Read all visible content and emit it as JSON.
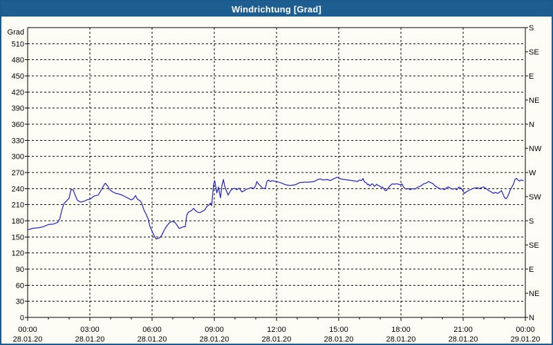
{
  "window": {
    "title": "Windrichtung [Grad]"
  },
  "colors": {
    "titlebar_bg": "#1e5d8f",
    "titlebar_text": "#ffffff",
    "window_border": "#1d5a8c",
    "background": "#fdfdf6",
    "plot_border": "#000000",
    "grid": "#000000",
    "text": "#000000",
    "line": "#2323c8"
  },
  "chart_data": {
    "type": "line",
    "title": "Windrichtung [Grad]",
    "grid": true,
    "legend": "none",
    "y_axis_left": {
      "title": "Grad",
      "min": 0,
      "max": 540,
      "tick_step": 30,
      "tick_labels": [
        "0",
        "30",
        "60",
        "90",
        "120",
        "150",
        "180",
        "210",
        "240",
        "270",
        "300",
        "330",
        "360",
        "390",
        "420",
        "450",
        "480",
        "510"
      ]
    },
    "y_axis_right": {
      "tick_step": 45,
      "tick_labels_top_to_bottom": [
        "S",
        "SE",
        "E",
        "NE",
        "N",
        "NW",
        "W",
        "SW",
        "S",
        "SE",
        "E",
        "NE",
        "N"
      ]
    },
    "x_axis": {
      "min_hour": 0,
      "max_hour": 24,
      "major_tick_step_hours": 3,
      "minor_tick_step_hours": 1,
      "major_tick_time_labels": [
        "00:00",
        "03:00",
        "06:00",
        "09:00",
        "12:00",
        "15:00",
        "18:00",
        "21:00",
        "00:00"
      ],
      "major_tick_date_labels": [
        "28.01.20",
        "28.01.20",
        "28.01.20",
        "28.01.20",
        "28.01.20",
        "28.01.20",
        "28.01.20",
        "28.01.20",
        "29.01.20"
      ]
    },
    "series": [
      {
        "name": "Windrichtung",
        "unit": "Grad",
        "color": "#2323c8",
        "points": [
          [
            0,
            163
          ],
          [
            0.25,
            166
          ],
          [
            0.5,
            167
          ],
          [
            0.75,
            169
          ],
          [
            1,
            173
          ],
          [
            1.25,
            174
          ],
          [
            1.45,
            177
          ],
          [
            1.55,
            184
          ],
          [
            1.65,
            200
          ],
          [
            1.75,
            212
          ],
          [
            1.9,
            218
          ],
          [
            2,
            222
          ],
          [
            2.05,
            231
          ],
          [
            2.1,
            239
          ],
          [
            2.2,
            237
          ],
          [
            2.3,
            227
          ],
          [
            2.4,
            218
          ],
          [
            2.55,
            215
          ],
          [
            2.7,
            216
          ],
          [
            2.85,
            219
          ],
          [
            3,
            220
          ],
          [
            3.1,
            223
          ],
          [
            3.2,
            226
          ],
          [
            3.3,
            227
          ],
          [
            3.4,
            228
          ],
          [
            3.5,
            234
          ],
          [
            3.6,
            241
          ],
          [
            3.7,
            248
          ],
          [
            3.75,
            250
          ],
          [
            3.85,
            245
          ],
          [
            3.95,
            238
          ],
          [
            4.1,
            234
          ],
          [
            4.25,
            231
          ],
          [
            4.4,
            230
          ],
          [
            4.55,
            228
          ],
          [
            4.7,
            225
          ],
          [
            4.85,
            222
          ],
          [
            5,
            219
          ],
          [
            5.1,
            221
          ],
          [
            5.2,
            227
          ],
          [
            5.3,
            220
          ],
          [
            5.4,
            218
          ],
          [
            5.5,
            213
          ],
          [
            5.6,
            201
          ],
          [
            5.7,
            193
          ],
          [
            5.8,
            185
          ],
          [
            5.9,
            169
          ],
          [
            6,
            161
          ],
          [
            6.1,
            152
          ],
          [
            6.2,
            146
          ],
          [
            6.35,
            148
          ],
          [
            6.45,
            152
          ],
          [
            6.55,
            160
          ],
          [
            6.7,
            170
          ],
          [
            6.85,
            177
          ],
          [
            7,
            179
          ],
          [
            7.1,
            177
          ],
          [
            7.2,
            172
          ],
          [
            7.3,
            166
          ],
          [
            7.4,
            167
          ],
          [
            7.5,
            169
          ],
          [
            7.6,
            169
          ],
          [
            7.67,
            190
          ],
          [
            7.75,
            196
          ],
          [
            7.9,
            199
          ],
          [
            8,
            203
          ],
          [
            8.15,
            197
          ],
          [
            8.3,
            195
          ],
          [
            8.45,
            198
          ],
          [
            8.55,
            201
          ],
          [
            8.65,
            207
          ],
          [
            8.75,
            210
          ],
          [
            8.82,
            213
          ],
          [
            8.87,
            208
          ],
          [
            8.92,
            228
          ],
          [
            8.97,
            248
          ],
          [
            9.02,
            255
          ],
          [
            9.07,
            244
          ],
          [
            9.12,
            232
          ],
          [
            9.2,
            243
          ],
          [
            9.26,
            230
          ],
          [
            9.3,
            223
          ],
          [
            9.36,
            244
          ],
          [
            9.44,
            257
          ],
          [
            9.5,
            245
          ],
          [
            9.56,
            238
          ],
          [
            9.67,
            228
          ],
          [
            9.78,
            236
          ],
          [
            9.9,
            240
          ],
          [
            10,
            240
          ],
          [
            10.1,
            238
          ],
          [
            10.2,
            241
          ],
          [
            10.33,
            234
          ],
          [
            10.45,
            236
          ],
          [
            10.55,
            239
          ],
          [
            10.67,
            240
          ],
          [
            10.78,
            242
          ],
          [
            10.9,
            240
          ],
          [
            11,
            246
          ],
          [
            11.05,
            253
          ],
          [
            11.15,
            248
          ],
          [
            11.25,
            244
          ],
          [
            11.35,
            240
          ],
          [
            11.45,
            240
          ],
          [
            11.55,
            254
          ],
          [
            11.62,
            256
          ],
          [
            11.7,
            253
          ],
          [
            11.78,
            255
          ],
          [
            11.88,
            254
          ],
          [
            12,
            253
          ],
          [
            12.2,
            251
          ],
          [
            12.45,
            247
          ],
          [
            12.65,
            246
          ],
          [
            12.9,
            247
          ],
          [
            13.1,
            251
          ],
          [
            13.35,
            252
          ],
          [
            13.55,
            252
          ],
          [
            13.8,
            253
          ],
          [
            14,
            257
          ],
          [
            14.1,
            258
          ],
          [
            14.25,
            256
          ],
          [
            14.45,
            257
          ],
          [
            14.6,
            255
          ],
          [
            14.7,
            257
          ],
          [
            14.8,
            259
          ],
          [
            14.9,
            261
          ],
          [
            15,
            260
          ],
          [
            15.1,
            258
          ],
          [
            15.25,
            257
          ],
          [
            15.45,
            256
          ],
          [
            15.65,
            255
          ],
          [
            15.8,
            254
          ],
          [
            15.9,
            253
          ],
          [
            16,
            256
          ],
          [
            16.1,
            255
          ],
          [
            16.17,
            259
          ],
          [
            16.25,
            252
          ],
          [
            16.33,
            251
          ],
          [
            16.4,
            247
          ],
          [
            16.45,
            248
          ],
          [
            16.5,
            245
          ],
          [
            16.56,
            247
          ],
          [
            16.61,
            249
          ],
          [
            16.67,
            247
          ],
          [
            16.72,
            244
          ],
          [
            16.78,
            246
          ],
          [
            16.83,
            248
          ],
          [
            16.9,
            246
          ],
          [
            17,
            244
          ],
          [
            17.06,
            242
          ],
          [
            17.11,
            243
          ],
          [
            17.17,
            240
          ],
          [
            17.22,
            237
          ],
          [
            17.28,
            236
          ],
          [
            17.33,
            238
          ],
          [
            17.4,
            242
          ],
          [
            17.45,
            244
          ],
          [
            17.5,
            246
          ],
          [
            17.56,
            248
          ],
          [
            17.61,
            249
          ],
          [
            17.67,
            248
          ],
          [
            17.78,
            249
          ],
          [
            17.89,
            248
          ],
          [
            18,
            247
          ],
          [
            18.05,
            249
          ],
          [
            18.12,
            243
          ],
          [
            18.2,
            240
          ],
          [
            18.28,
            239
          ],
          [
            18.35,
            240
          ],
          [
            18.45,
            238
          ],
          [
            18.55,
            240
          ],
          [
            18.67,
            239
          ],
          [
            18.78,
            242
          ],
          [
            18.9,
            244
          ],
          [
            19,
            246
          ],
          [
            19.1,
            249
          ],
          [
            19.2,
            250
          ],
          [
            19.33,
            253
          ],
          [
            19.45,
            251
          ],
          [
            19.55,
            249
          ],
          [
            19.67,
            244
          ],
          [
            19.78,
            242
          ],
          [
            19.9,
            239
          ],
          [
            20,
            240
          ],
          [
            20.1,
            238
          ],
          [
            20.2,
            242
          ],
          [
            20.3,
            243
          ],
          [
            20.4,
            240
          ],
          [
            20.5,
            239
          ],
          [
            20.6,
            240
          ],
          [
            20.7,
            238
          ],
          [
            20.8,
            243
          ],
          [
            20.9,
            241
          ],
          [
            21,
            235
          ],
          [
            21.07,
            231
          ],
          [
            21.15,
            234
          ],
          [
            21.25,
            236
          ],
          [
            21.35,
            238
          ],
          [
            21.45,
            240
          ],
          [
            21.55,
            241
          ],
          [
            21.67,
            242
          ],
          [
            21.78,
            240
          ],
          [
            21.9,
            242
          ],
          [
            22,
            243
          ],
          [
            22.1,
            240
          ],
          [
            22.25,
            236
          ],
          [
            22.35,
            234
          ],
          [
            22.45,
            231
          ],
          [
            22.55,
            233
          ],
          [
            22.67,
            231
          ],
          [
            22.78,
            234
          ],
          [
            22.85,
            236
          ],
          [
            22.92,
            230
          ],
          [
            23,
            223
          ],
          [
            23.07,
            221
          ],
          [
            23.13,
            224
          ],
          [
            23.2,
            230
          ],
          [
            23.28,
            238
          ],
          [
            23.35,
            243
          ],
          [
            23.42,
            248
          ],
          [
            23.5,
            257
          ],
          [
            23.57,
            259
          ],
          [
            23.65,
            256
          ],
          [
            23.72,
            254
          ],
          [
            23.8,
            256
          ],
          [
            23.9,
            255
          ]
        ]
      }
    ]
  }
}
